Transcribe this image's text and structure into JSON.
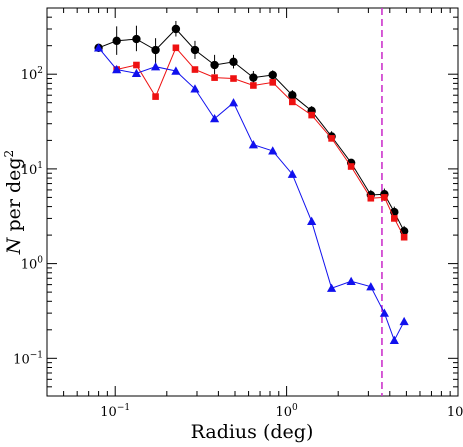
{
  "chart_data": {
    "type": "line",
    "title": "",
    "xlabel": "Radius (deg)",
    "ylabel_main": "N per deg",
    "ylabel_sup": "2",
    "xscale": "log",
    "yscale": "log",
    "xlim": [
      0.04,
      10
    ],
    "ylim": [
      0.04,
      500
    ],
    "grid": false,
    "legend": "none",
    "x_ticks": [
      {
        "value": 0.1,
        "base": "10",
        "exp": "−1"
      },
      {
        "value": 1,
        "base": "10",
        "exp": "0"
      },
      {
        "value": 10,
        "base": "10",
        "exp": "1"
      }
    ],
    "y_ticks": [
      {
        "value": 0.1,
        "base": "10",
        "exp": "−1"
      },
      {
        "value": 1,
        "base": "10",
        "exp": "0"
      },
      {
        "value": 10,
        "base": "10",
        "exp": "1"
      },
      {
        "value": 100,
        "base": "10",
        "exp": "2"
      }
    ],
    "vline": {
      "x": 3.6,
      "color": "#cc33cc",
      "style": "dashed"
    },
    "series": [
      {
        "color": "#000000",
        "marker": "circle",
        "x": [
          0.08,
          0.102,
          0.133,
          0.172,
          0.226,
          0.292,
          0.38,
          0.49,
          0.64,
          0.83,
          1.08,
          1.4,
          1.83,
          2.38,
          3.1,
          3.72,
          4.25,
          4.85
        ],
        "y": [
          190,
          225,
          235,
          180,
          300,
          180,
          125,
          135,
          92,
          98,
          60,
          41,
          22,
          11.6,
          5.3,
          5.4,
          3.5,
          2.2
        ],
        "yerr_up": [
          205,
          320,
          325,
          240,
          365,
          225,
          160,
          160,
          108,
          110,
          68,
          46,
          25,
          12.7,
          6.0,
          6.2,
          4.0,
          2.5
        ],
        "yerr_down": [
          172,
          160,
          175,
          130,
          250,
          145,
          100,
          115,
          80,
          88,
          53,
          37,
          20,
          10.6,
          4.7,
          4.6,
          3.0,
          1.9
        ]
      },
      {
        "color": "#ee1111",
        "marker": "square",
        "x": [
          0.102,
          0.133,
          0.172,
          0.226,
          0.292,
          0.38,
          0.49,
          0.64,
          0.83,
          1.08,
          1.4,
          1.83,
          2.38,
          3.1,
          3.72,
          4.25,
          4.85
        ],
        "y": [
          112,
          125,
          58,
          190,
          112,
          92,
          90,
          76,
          82,
          51,
          37,
          21,
          10.6,
          4.9,
          5.0,
          3.0,
          1.9
        ]
      },
      {
        "color": "#1111ee",
        "marker": "triangle",
        "x": [
          0.08,
          0.102,
          0.133,
          0.172,
          0.226,
          0.292,
          0.38,
          0.49,
          0.64,
          0.83,
          1.08,
          1.4,
          1.83,
          2.38,
          3.1,
          3.72,
          4.25,
          4.85
        ],
        "y": [
          190,
          112,
          102,
          120,
          108,
          70,
          34,
          50,
          18,
          15.5,
          8.8,
          2.8,
          0.55,
          0.65,
          0.57,
          0.3,
          0.155,
          0.245
        ]
      }
    ]
  }
}
